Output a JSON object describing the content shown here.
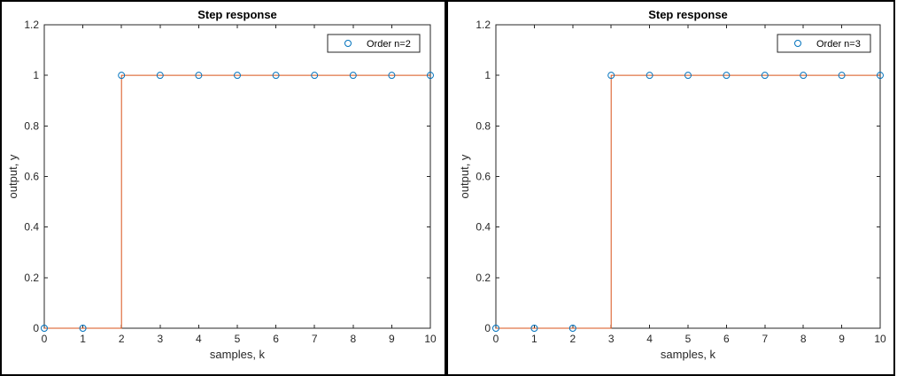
{
  "colors": {
    "marker": "#0072BD",
    "step_line": "#D95319"
  },
  "chart_data": [
    {
      "type": "scatter",
      "title": "Step response",
      "xlabel": "samples, k",
      "ylabel": "output, y",
      "xlim": [
        0,
        10
      ],
      "ylim": [
        0,
        1.2
      ],
      "xticks": [
        "0",
        "1",
        "2",
        "3",
        "4",
        "5",
        "6",
        "7",
        "8",
        "9",
        "10"
      ],
      "yticks": [
        "0",
        "0.2",
        "0.4",
        "0.6",
        "0.8",
        "1",
        "1.2"
      ],
      "legend_position": "top-right",
      "grid": false,
      "series": [
        {
          "name": "Order n=2",
          "marker": "circle",
          "x": [
            0,
            1,
            2,
            3,
            4,
            5,
            6,
            7,
            8,
            9,
            10
          ],
          "y": [
            0,
            0,
            1,
            1,
            1,
            1,
            1,
            1,
            1,
            1,
            1
          ]
        }
      ],
      "step_line": {
        "x": [
          0,
          2,
          2,
          10
        ],
        "y": [
          0,
          0,
          1,
          1
        ]
      }
    },
    {
      "type": "scatter",
      "title": "Step response",
      "xlabel": "samples, k",
      "ylabel": "output, y",
      "xlim": [
        0,
        10
      ],
      "ylim": [
        0,
        1.2
      ],
      "xticks": [
        "0",
        "1",
        "2",
        "3",
        "4",
        "5",
        "6",
        "7",
        "8",
        "9",
        "10"
      ],
      "yticks": [
        "0",
        "0.2",
        "0.4",
        "0.6",
        "0.8",
        "1",
        "1.2"
      ],
      "legend_position": "top-right",
      "grid": false,
      "series": [
        {
          "name": "Order n=3",
          "marker": "circle",
          "x": [
            0,
            1,
            2,
            3,
            4,
            5,
            6,
            7,
            8,
            9,
            10
          ],
          "y": [
            0,
            0,
            0,
            1,
            1,
            1,
            1,
            1,
            1,
            1,
            1
          ]
        }
      ],
      "step_line": {
        "x": [
          0,
          3,
          3,
          10
        ],
        "y": [
          0,
          0,
          1,
          1
        ]
      }
    }
  ]
}
